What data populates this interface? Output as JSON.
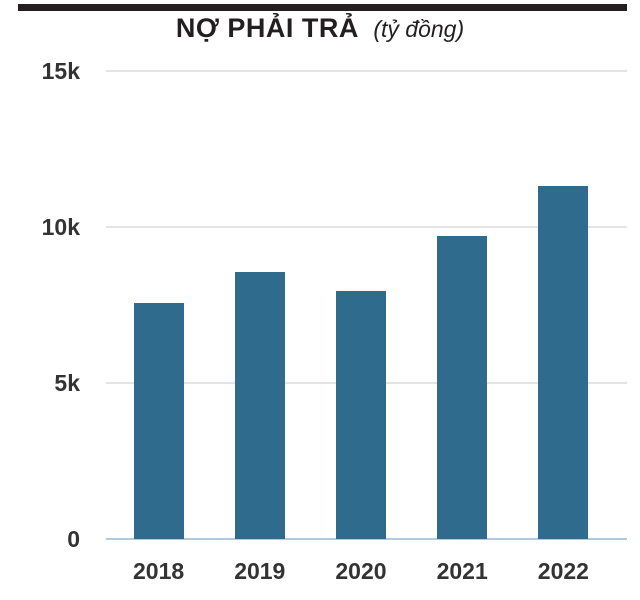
{
  "page": {
    "background": "#ffffff"
  },
  "header": {
    "rule_color": "#231f20",
    "title": "NỢ PHẢI TRẢ",
    "subtitle": "(tỷ đồng)",
    "title_color": "#231f20"
  },
  "chart_data": {
    "type": "bar",
    "title": "NỢ PHẢI TRẢ",
    "unit_label": "(tỷ đồng)",
    "categories": [
      "2018",
      "2019",
      "2020",
      "2021",
      "2022"
    ],
    "values": [
      7550,
      8550,
      7950,
      9700,
      11300
    ],
    "yticks": [
      {
        "label": "0",
        "value": 0
      },
      {
        "label": "5k",
        "value": 5000
      },
      {
        "label": "10k",
        "value": 10000
      },
      {
        "label": "15k",
        "value": 15000
      }
    ],
    "ylim": [
      0,
      15000
    ],
    "xlabel": "",
    "ylabel": "",
    "grid": true,
    "legend": false,
    "colors": {
      "bar": "#2e6b8d",
      "gridline": "#e4e4e4",
      "baseline": "#b3c9e0",
      "tick_label": "#333333",
      "title": "#231f20"
    }
  }
}
